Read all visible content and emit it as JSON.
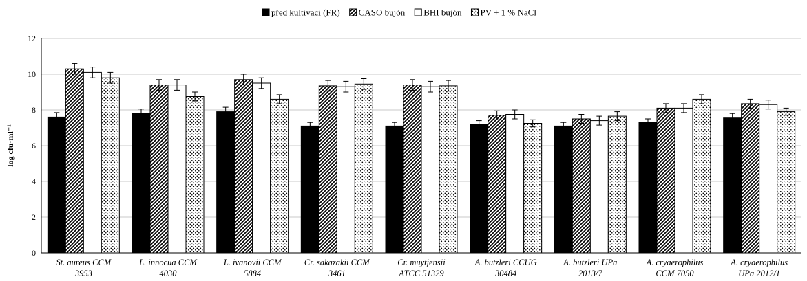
{
  "chart_data": {
    "type": "bar",
    "ylabel": "log cfu·ml⁻¹",
    "ylim": [
      0,
      12
    ],
    "yticks": [
      0,
      2,
      4,
      6,
      8,
      10,
      12
    ],
    "grid": true,
    "legend_position": "top",
    "categories": [
      [
        "St. aureus CCM",
        "3953"
      ],
      [
        "L. innocua CCM",
        "4030"
      ],
      [
        "L. ivanovii CCM",
        "5884"
      ],
      [
        "Cr. sakazakii CCM",
        "3461"
      ],
      [
        "Cr. muytjensii",
        "ATCC 51329"
      ],
      [
        "A. butzleri CCUG",
        "30484"
      ],
      [
        "A. butzleri UPa",
        "2013/7"
      ],
      [
        "A. cryaerophilus",
        "CCM 7050"
      ],
      [
        "A. cryaerophilus",
        "UPa 2012/1"
      ]
    ],
    "series": [
      {
        "name": "před kultivací (FR)",
        "pattern": "solid",
        "values": [
          7.6,
          7.8,
          7.9,
          7.1,
          7.1,
          7.2,
          7.1,
          7.3,
          7.55
        ],
        "errors": [
          0.25,
          0.25,
          0.25,
          0.2,
          0.2,
          0.2,
          0.2,
          0.2,
          0.25
        ]
      },
      {
        "name": "CASO bujón",
        "pattern": "hatch",
        "values": [
          10.3,
          9.4,
          9.7,
          9.35,
          9.4,
          7.7,
          7.5,
          8.1,
          8.35
        ],
        "errors": [
          0.3,
          0.3,
          0.3,
          0.3,
          0.3,
          0.25,
          0.25,
          0.25,
          0.25
        ]
      },
      {
        "name": "BHI bujón",
        "pattern": "white",
        "values": [
          10.1,
          9.4,
          9.5,
          9.3,
          9.3,
          7.75,
          7.4,
          8.1,
          8.3
        ],
        "errors": [
          0.3,
          0.3,
          0.3,
          0.3,
          0.3,
          0.25,
          0.25,
          0.25,
          0.25
        ]
      },
      {
        "name": "PV + 1 % NaCl",
        "pattern": "dots",
        "values": [
          9.8,
          8.75,
          8.6,
          9.45,
          9.35,
          7.25,
          7.65,
          8.6,
          7.9
        ],
        "errors": [
          0.3,
          0.25,
          0.25,
          0.3,
          0.3,
          0.2,
          0.25,
          0.25,
          0.2
        ]
      }
    ]
  }
}
